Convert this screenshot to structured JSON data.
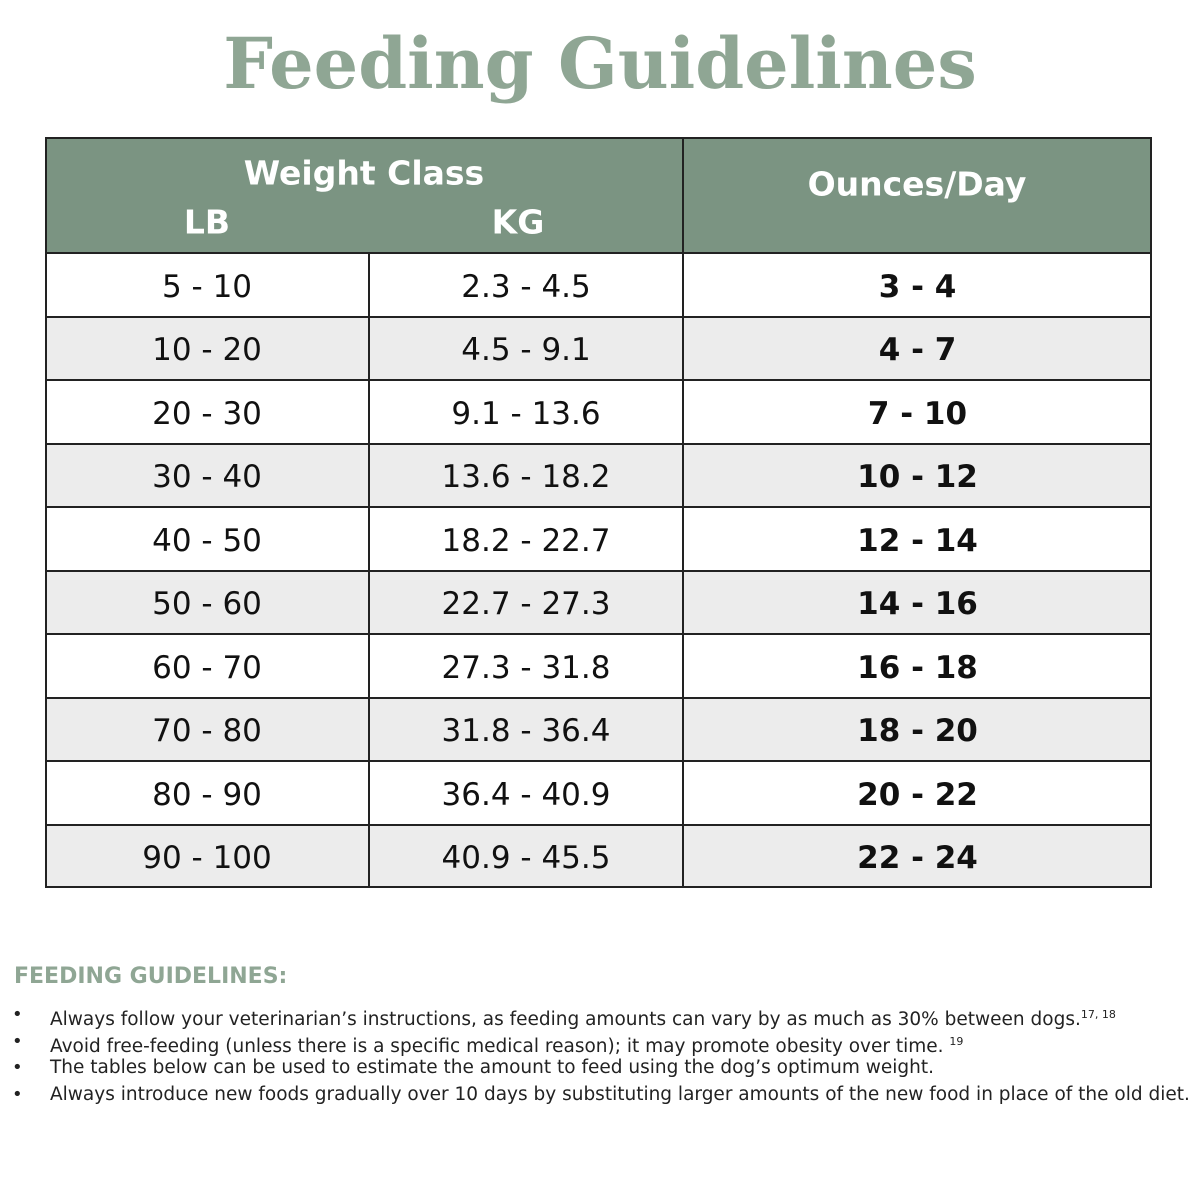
{
  "title": "Feeding Guidelines",
  "table": {
    "header": {
      "weight_class": "Weight Class",
      "lb": "LB",
      "kg": "KG",
      "ounces": "Ounces/Day"
    },
    "rows": [
      [
        "5 - 10",
        "2.3 - 4.5",
        "3 - 4"
      ],
      [
        "10 - 20",
        "4.5 - 9.1",
        "4 - 7"
      ],
      [
        "20 - 30",
        "9.1 - 13.6",
        "7 - 10"
      ],
      [
        "30 - 40",
        "13.6 - 18.2",
        "10 - 12"
      ],
      [
        "40 - 50",
        "18.2 - 22.7",
        "12 - 14"
      ],
      [
        "50 - 60",
        "22.7 - 27.3",
        "14 - 16"
      ],
      [
        "60 - 70",
        "27.3 - 31.8",
        "16 - 18"
      ],
      [
        "70 - 80",
        "31.8 - 36.4",
        "18 - 20"
      ],
      [
        "80 - 90",
        "36.4 - 40.9",
        "20 - 22"
      ],
      [
        "90 - 100",
        "40.9 - 45.5",
        "22 - 24"
      ]
    ]
  },
  "notes": {
    "heading": "FEEDING GUIDELINES:",
    "items": [
      {
        "text": "Always follow your veterinarian’s instructions, as feeding amounts can vary by as much as 30% between dogs.",
        "sup": "17, 18"
      },
      {
        "text": "Avoid free-feeding (unless there is a specific medical reason); it may promote obesity over time. ",
        "sup": "19"
      },
      {
        "text": "The tables below can be used to estimate the amount to feed using the dog’s optimum weight."
      },
      {
        "text": "Always introduce new foods gradually over 10 days by substituting larger amounts of the new food in place of the old diet."
      }
    ]
  }
}
